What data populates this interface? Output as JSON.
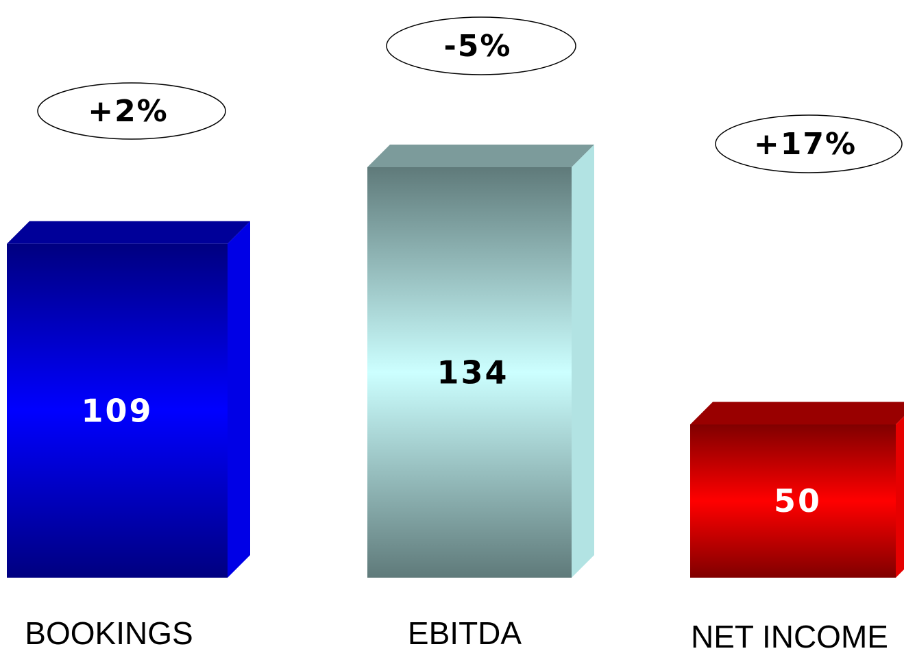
{
  "chart_data": {
    "type": "bar",
    "title": "",
    "xlabel": "",
    "ylabel": "",
    "categories": [
      "BOOKINGS",
      "EBITDA",
      "NET INCOME"
    ],
    "values": [
      109,
      134,
      50
    ],
    "value_labels": [
      "109",
      "134",
      "50"
    ],
    "change_labels": [
      "+2%",
      "-5%",
      "+17%"
    ],
    "ylim": [
      0,
      134
    ],
    "grid": false,
    "legend": "none",
    "style": "3d-bar",
    "colors": [
      {
        "front_edge": "#000080",
        "front_mid": "#0000FF",
        "top": "#000099",
        "side": "#0000E6",
        "label": "#FFFFFF"
      },
      {
        "front_edge": "#5F7A7A",
        "front_mid": "#CCFFFF",
        "top": "#7C9B9B",
        "side": "#B2E3E3",
        "label": "#000000"
      },
      {
        "front_edge": "#800000",
        "front_mid": "#FF0000",
        "top": "#990000",
        "side": "#E60000",
        "label": "#FFFFFF"
      }
    ]
  }
}
